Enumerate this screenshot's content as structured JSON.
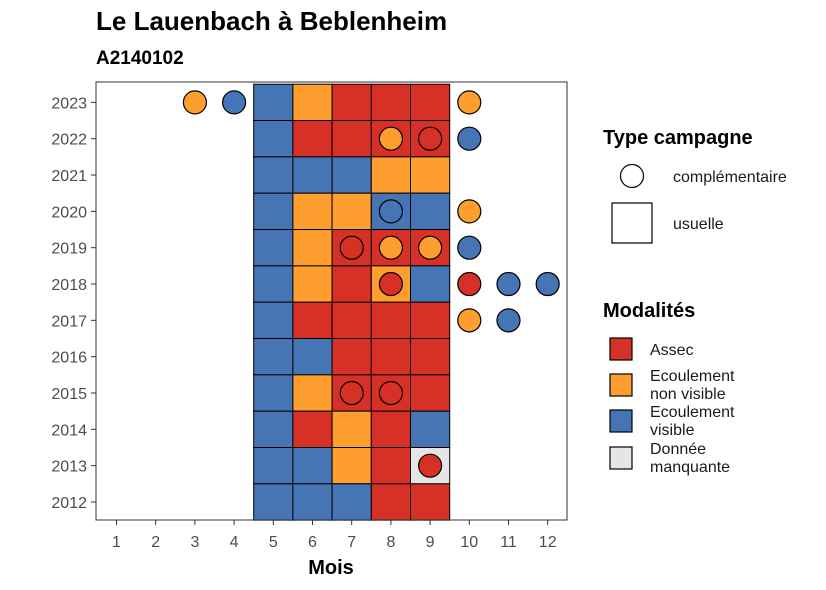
{
  "colors": {
    "assec": "#d73027",
    "ecoulement_non_visible": "#fd9e2e",
    "ecoulement_visible": "#4575b4",
    "donnee_manquante": "#e5e5e5"
  },
  "chart_data": {
    "type": "heatmap",
    "title": "Le Lauenbach à Beblenheim",
    "subtitle": "A2140102",
    "xlabel": "Mois",
    "ylabel": "",
    "x_ticks": [
      1,
      2,
      3,
      4,
      5,
      6,
      7,
      8,
      9,
      10,
      11,
      12
    ],
    "y_ticks": [
      2012,
      2013,
      2014,
      2015,
      2016,
      2017,
      2018,
      2019,
      2020,
      2021,
      2022,
      2023
    ],
    "modalites": [
      {
        "key": "assec",
        "label_lines": [
          "Assec"
        ]
      },
      {
        "key": "ecoulement_non_visible",
        "label_lines": [
          "Ecoulement",
          "non visible"
        ]
      },
      {
        "key": "ecoulement_visible",
        "label_lines": [
          "Ecoulement",
          "visible"
        ]
      },
      {
        "key": "donnee_manquante",
        "label_lines": [
          "Donnée",
          "manquante"
        ]
      }
    ],
    "type_campagne": [
      {
        "key": "complementaire",
        "label": "complémentaire",
        "shape": "circle"
      },
      {
        "key": "usuelle",
        "label": "usuelle",
        "shape": "square"
      }
    ],
    "legend_titles": {
      "type_campagne": "Type campagne",
      "modalites": "Modalités"
    },
    "legend_position": "right",
    "grid": false,
    "usuelle": [
      {
        "year": 2023,
        "months": [
          5,
          6,
          7,
          8,
          9
        ],
        "values": [
          "ecoulement_visible",
          "ecoulement_non_visible",
          "assec",
          "assec",
          "assec"
        ]
      },
      {
        "year": 2022,
        "months": [
          5,
          6,
          7,
          8,
          9
        ],
        "values": [
          "ecoulement_visible",
          "assec",
          "assec",
          "assec",
          "assec"
        ]
      },
      {
        "year": 2021,
        "months": [
          5,
          6,
          7,
          8,
          9
        ],
        "values": [
          "ecoulement_visible",
          "ecoulement_visible",
          "ecoulement_visible",
          "ecoulement_non_visible",
          "ecoulement_non_visible"
        ]
      },
      {
        "year": 2020,
        "months": [
          5,
          6,
          7,
          8,
          9
        ],
        "values": [
          "ecoulement_visible",
          "ecoulement_non_visible",
          "ecoulement_non_visible",
          "ecoulement_visible",
          "ecoulement_visible"
        ]
      },
      {
        "year": 2019,
        "months": [
          5,
          6,
          7,
          8,
          9
        ],
        "values": [
          "ecoulement_visible",
          "ecoulement_non_visible",
          "assec",
          "assec",
          "assec"
        ]
      },
      {
        "year": 2018,
        "months": [
          5,
          6,
          7,
          8,
          9
        ],
        "values": [
          "ecoulement_visible",
          "ecoulement_non_visible",
          "assec",
          "ecoulement_non_visible",
          "ecoulement_visible"
        ]
      },
      {
        "year": 2017,
        "months": [
          5,
          6,
          7,
          8,
          9
        ],
        "values": [
          "ecoulement_visible",
          "assec",
          "assec",
          "assec",
          "assec"
        ]
      },
      {
        "year": 2016,
        "months": [
          5,
          6,
          7,
          8,
          9
        ],
        "values": [
          "ecoulement_visible",
          "ecoulement_visible",
          "assec",
          "assec",
          "assec"
        ]
      },
      {
        "year": 2015,
        "months": [
          5,
          6,
          7,
          8,
          9
        ],
        "values": [
          "ecoulement_visible",
          "ecoulement_non_visible",
          "assec",
          "assec",
          "assec"
        ]
      },
      {
        "year": 2014,
        "months": [
          5,
          6,
          7,
          8,
          9
        ],
        "values": [
          "ecoulement_visible",
          "assec",
          "ecoulement_non_visible",
          "assec",
          "ecoulement_visible"
        ]
      },
      {
        "year": 2013,
        "months": [
          5,
          6,
          7,
          8,
          9
        ],
        "values": [
          "ecoulement_visible",
          "ecoulement_visible",
          "ecoulement_non_visible",
          "assec",
          "donnee_manquante"
        ]
      },
      {
        "year": 2012,
        "months": [
          5,
          6,
          7,
          8,
          9
        ],
        "values": [
          "ecoulement_visible",
          "ecoulement_visible",
          "ecoulement_visible",
          "assec",
          "assec"
        ]
      }
    ],
    "complementaire": [
      {
        "year": 2023,
        "month": 3,
        "value": "ecoulement_non_visible"
      },
      {
        "year": 2023,
        "month": 4,
        "value": "ecoulement_visible"
      },
      {
        "year": 2023,
        "month": 10,
        "value": "ecoulement_non_visible"
      },
      {
        "year": 2022,
        "month": 8,
        "value": "ecoulement_non_visible"
      },
      {
        "year": 2022,
        "month": 9,
        "value": "assec"
      },
      {
        "year": 2022,
        "month": 10,
        "value": "ecoulement_visible"
      },
      {
        "year": 2020,
        "month": 8,
        "value": "ecoulement_visible"
      },
      {
        "year": 2020,
        "month": 10,
        "value": "ecoulement_non_visible"
      },
      {
        "year": 2019,
        "month": 7,
        "value": "assec"
      },
      {
        "year": 2019,
        "month": 8,
        "value": "ecoulement_non_visible"
      },
      {
        "year": 2019,
        "month": 9,
        "value": "ecoulement_non_visible"
      },
      {
        "year": 2019,
        "month": 10,
        "value": "ecoulement_visible"
      },
      {
        "year": 2018,
        "month": 8,
        "value": "assec"
      },
      {
        "year": 2018,
        "month": 10,
        "value": "assec"
      },
      {
        "year": 2018,
        "month": 11,
        "value": "ecoulement_visible"
      },
      {
        "year": 2018,
        "month": 12,
        "value": "ecoulement_visible"
      },
      {
        "year": 2017,
        "month": 10,
        "value": "ecoulement_non_visible"
      },
      {
        "year": 2017,
        "month": 11,
        "value": "ecoulement_visible"
      },
      {
        "year": 2015,
        "month": 7,
        "value": "assec"
      },
      {
        "year": 2015,
        "month": 8,
        "value": "assec"
      },
      {
        "year": 2013,
        "month": 9,
        "value": "assec"
      }
    ]
  }
}
